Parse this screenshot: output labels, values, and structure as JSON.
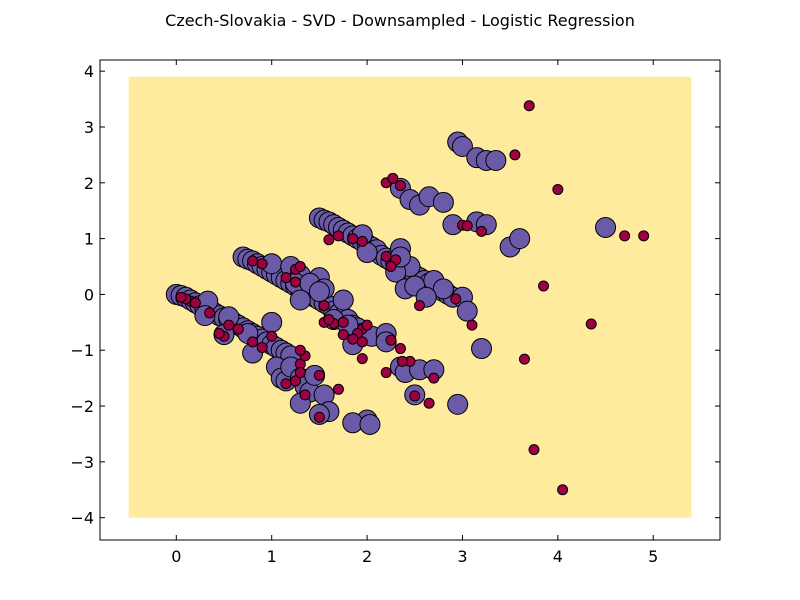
{
  "chart_data": {
    "type": "scatter",
    "title": "Czech-Slovakia - SVD - Downsampled - Logistic Regression",
    "xlabel": "",
    "ylabel": "",
    "xlim": [
      -0.8,
      5.7
    ],
    "ylim": [
      -4.4,
      4.2
    ],
    "x_ticks": [
      0,
      1,
      2,
      3,
      4,
      5
    ],
    "x_tick_labels": [
      "0",
      "1",
      "2",
      "3",
      "4",
      "5"
    ],
    "y_ticks": [
      -4,
      -3,
      -2,
      -1,
      0,
      1,
      2,
      3,
      4
    ],
    "y_tick_labels": [
      "−4",
      "−3",
      "−2",
      "−1",
      "0",
      "1",
      "2",
      "3",
      "4"
    ],
    "grid": false,
    "background_region": {
      "x": [
        -0.5,
        5.4
      ],
      "y": [
        -4.0,
        3.9
      ],
      "color": "#ffeb9e"
    },
    "series": [
      {
        "marker": "large-circle",
        "color": "#6a5aa8",
        "points": [
          [
            0.0,
            0.0
          ],
          [
            0.05,
            -0.02
          ],
          [
            0.1,
            -0.05
          ],
          [
            0.15,
            -0.1
          ],
          [
            0.2,
            -0.15
          ],
          [
            0.25,
            -0.2
          ],
          [
            0.3,
            -0.25
          ],
          [
            0.35,
            -0.3
          ],
          [
            0.4,
            -0.33
          ],
          [
            0.45,
            -0.38
          ],
          [
            0.5,
            -0.42
          ],
          [
            0.55,
            -0.45
          ],
          [
            0.6,
            -0.5
          ],
          [
            0.65,
            -0.55
          ],
          [
            0.7,
            -0.6
          ],
          [
            0.75,
            -0.65
          ],
          [
            0.8,
            -0.7
          ],
          [
            0.85,
            -0.75
          ],
          [
            0.9,
            -0.8
          ],
          [
            0.95,
            -0.85
          ],
          [
            1.0,
            -0.9
          ],
          [
            1.05,
            -0.95
          ],
          [
            1.1,
            -1.0
          ],
          [
            1.15,
            -1.05
          ],
          [
            1.2,
            -1.1
          ],
          [
            0.33,
            -0.12
          ],
          [
            0.55,
            -0.4
          ],
          [
            0.3,
            -0.38
          ],
          [
            0.5,
            -0.72
          ],
          [
            0.75,
            -0.7
          ],
          [
            1.0,
            -0.5
          ],
          [
            0.8,
            -1.05
          ],
          [
            1.05,
            -1.3
          ],
          [
            1.1,
            -1.5
          ],
          [
            1.15,
            -1.55
          ],
          [
            1.2,
            -1.3
          ],
          [
            1.3,
            -1.5
          ],
          [
            1.35,
            -1.65
          ],
          [
            1.4,
            -1.75
          ],
          [
            1.45,
            -1.45
          ],
          [
            1.55,
            -1.8
          ],
          [
            1.6,
            -2.1
          ],
          [
            1.3,
            -1.95
          ],
          [
            1.5,
            -2.15
          ],
          [
            2.0,
            -2.25
          ],
          [
            1.85,
            -2.3
          ],
          [
            2.03,
            -2.33
          ],
          [
            0.7,
            0.67
          ],
          [
            0.75,
            0.63
          ],
          [
            0.8,
            0.6
          ],
          [
            0.85,
            0.55
          ],
          [
            0.9,
            0.5
          ],
          [
            0.95,
            0.45
          ],
          [
            1.0,
            0.4
          ],
          [
            1.05,
            0.35
          ],
          [
            1.1,
            0.3
          ],
          [
            1.15,
            0.25
          ],
          [
            1.2,
            0.2
          ],
          [
            1.25,
            0.15
          ],
          [
            1.3,
            0.1
          ],
          [
            1.35,
            0.05
          ],
          [
            1.4,
            0.0
          ],
          [
            1.45,
            -0.05
          ],
          [
            1.5,
            -0.1
          ],
          [
            1.55,
            -0.15
          ],
          [
            1.6,
            -0.2
          ],
          [
            1.65,
            -0.3
          ],
          [
            1.7,
            -0.35
          ],
          [
            1.75,
            -0.4
          ],
          [
            1.8,
            -0.45
          ],
          [
            1.85,
            -0.55
          ],
          [
            1.9,
            -0.6
          ],
          [
            1.95,
            -0.7
          ],
          [
            2.05,
            -0.75
          ],
          [
            1.0,
            0.55
          ],
          [
            1.2,
            0.5
          ],
          [
            1.3,
            0.35
          ],
          [
            1.25,
            0.2
          ],
          [
            1.5,
            0.3
          ],
          [
            1.4,
            0.2
          ],
          [
            1.55,
            0.1
          ],
          [
            1.3,
            -0.1
          ],
          [
            1.5,
            0.05
          ],
          [
            1.75,
            -0.1
          ],
          [
            1.65,
            -0.45
          ],
          [
            1.8,
            -0.55
          ],
          [
            2.2,
            -0.7
          ],
          [
            1.85,
            -0.9
          ],
          [
            2.2,
            -0.85
          ],
          [
            2.35,
            -1.3
          ],
          [
            2.4,
            -1.4
          ],
          [
            2.55,
            -1.35
          ],
          [
            2.7,
            -1.35
          ],
          [
            2.5,
            -1.8
          ],
          [
            2.95,
            -1.97
          ],
          [
            1.5,
            1.37
          ],
          [
            1.55,
            1.33
          ],
          [
            1.6,
            1.3
          ],
          [
            1.65,
            1.25
          ],
          [
            1.7,
            1.2
          ],
          [
            1.75,
            1.15
          ],
          [
            1.8,
            1.1
          ],
          [
            1.85,
            1.05
          ],
          [
            1.9,
            1.0
          ],
          [
            1.95,
            0.95
          ],
          [
            2.0,
            0.9
          ],
          [
            2.05,
            0.85
          ],
          [
            2.1,
            0.8
          ],
          [
            2.15,
            0.7
          ],
          [
            2.2,
            0.65
          ],
          [
            2.25,
            0.6
          ],
          [
            2.3,
            0.55
          ],
          [
            2.35,
            0.5
          ],
          [
            2.4,
            0.45
          ],
          [
            2.45,
            0.4
          ],
          [
            2.5,
            0.35
          ],
          [
            2.55,
            0.3
          ],
          [
            2.6,
            0.25
          ],
          [
            2.65,
            0.2
          ],
          [
            2.7,
            0.15
          ],
          [
            2.75,
            0.1
          ],
          [
            2.8,
            0.05
          ],
          [
            2.85,
            0.0
          ],
          [
            2.9,
            -0.05
          ],
          [
            3.0,
            -0.05
          ],
          [
            3.05,
            -0.3
          ],
          [
            3.2,
            -0.97
          ],
          [
            2.35,
            0.82
          ],
          [
            2.0,
            0.75
          ],
          [
            2.45,
            0.5
          ],
          [
            2.3,
            0.4
          ],
          [
            2.4,
            0.1
          ],
          [
            2.5,
            0.15
          ],
          [
            2.7,
            0.25
          ],
          [
            2.8,
            0.1
          ],
          [
            2.62,
            -0.05
          ],
          [
            1.95,
            1.07
          ],
          [
            2.35,
            0.67
          ],
          [
            2.35,
            1.9
          ],
          [
            2.45,
            1.7
          ],
          [
            2.55,
            1.6
          ],
          [
            2.65,
            1.75
          ],
          [
            2.8,
            1.65
          ],
          [
            2.95,
            2.73
          ],
          [
            3.0,
            2.65
          ],
          [
            3.15,
            2.45
          ],
          [
            3.25,
            2.4
          ],
          [
            3.35,
            2.4
          ],
          [
            2.9,
            1.25
          ],
          [
            3.15,
            1.3
          ],
          [
            3.25,
            1.25
          ],
          [
            3.5,
            0.85
          ],
          [
            3.6,
            1.0
          ],
          [
            4.5,
            1.2
          ]
        ]
      },
      {
        "marker": "small-circle",
        "color": "#9e0142",
        "points": [
          [
            3.7,
            3.38
          ],
          [
            3.55,
            2.5
          ],
          [
            4.0,
            1.88
          ],
          [
            2.2,
            2.0
          ],
          [
            2.27,
            2.08
          ],
          [
            2.35,
            1.95
          ],
          [
            3.0,
            1.24
          ],
          [
            3.05,
            1.23
          ],
          [
            3.2,
            1.13
          ],
          [
            4.7,
            1.05
          ],
          [
            4.9,
            1.05
          ],
          [
            3.85,
            0.15
          ],
          [
            4.35,
            -0.53
          ],
          [
            3.65,
            -1.16
          ],
          [
            3.75,
            -2.78
          ],
          [
            4.05,
            -3.5
          ],
          [
            3.1,
            -0.55
          ],
          [
            2.93,
            -0.08
          ],
          [
            2.7,
            -1.5
          ],
          [
            2.65,
            -1.95
          ],
          [
            2.5,
            -1.82
          ],
          [
            2.2,
            -1.4
          ],
          [
            2.35,
            -0.97
          ],
          [
            2.45,
            -1.2
          ],
          [
            2.37,
            -1.2
          ],
          [
            2.25,
            -0.82
          ],
          [
            2.2,
            0.68
          ],
          [
            2.3,
            0.62
          ],
          [
            2.25,
            0.5
          ],
          [
            1.85,
            1.0
          ],
          [
            1.95,
            0.95
          ],
          [
            1.7,
            1.05
          ],
          [
            1.6,
            0.98
          ],
          [
            1.95,
            -0.62
          ],
          [
            1.9,
            -0.7
          ],
          [
            1.85,
            -0.8
          ],
          [
            1.95,
            -1.15
          ],
          [
            1.75,
            -0.72
          ],
          [
            1.65,
            -0.52
          ],
          [
            1.55,
            -0.5
          ],
          [
            1.6,
            -0.45
          ],
          [
            1.55,
            -0.2
          ],
          [
            1.15,
            0.3
          ],
          [
            1.25,
            0.22
          ],
          [
            1.25,
            0.45
          ],
          [
            1.3,
            0.5
          ],
          [
            0.8,
            0.6
          ],
          [
            0.9,
            0.55
          ],
          [
            1.0,
            -0.75
          ],
          [
            0.9,
            -0.95
          ],
          [
            0.8,
            -0.85
          ],
          [
            0.65,
            -0.62
          ],
          [
            0.55,
            -0.55
          ],
          [
            0.5,
            -0.75
          ],
          [
            0.45,
            -0.7
          ],
          [
            0.35,
            -0.33
          ],
          [
            0.15,
            -0.12
          ],
          [
            0.2,
            -0.15
          ],
          [
            0.1,
            -0.08
          ],
          [
            0.05,
            -0.05
          ],
          [
            1.3,
            -1.25
          ],
          [
            1.35,
            -1.8
          ],
          [
            1.25,
            -1.55
          ],
          [
            1.3,
            -1.4
          ],
          [
            1.15,
            -1.6
          ],
          [
            1.5,
            -1.45
          ],
          [
            1.5,
            -2.2
          ],
          [
            1.7,
            -1.7
          ],
          [
            1.35,
            -1.1
          ],
          [
            1.3,
            -1.0
          ],
          [
            1.95,
            -0.85
          ],
          [
            1.75,
            -0.5
          ],
          [
            2.0,
            -0.55
          ],
          [
            2.55,
            -0.2
          ]
        ]
      }
    ]
  }
}
